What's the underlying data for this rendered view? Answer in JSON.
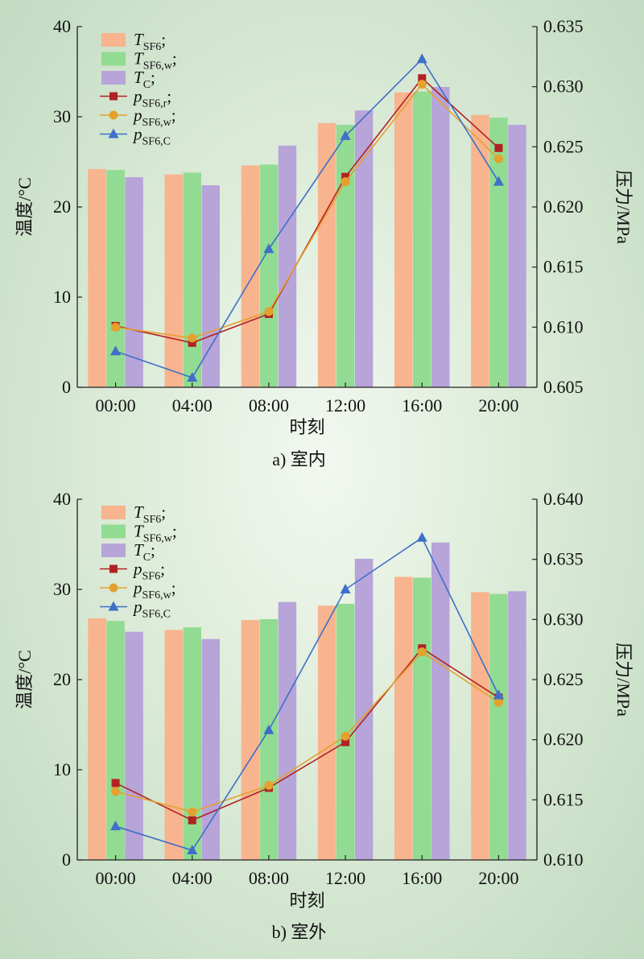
{
  "chart_data": [
    {
      "type": "bar",
      "caption": "a) 室内",
      "categories": [
        "00:00",
        "04:00",
        "08:00",
        "12:00",
        "16:00",
        "20:00"
      ],
      "xlabel": "时刻",
      "ylabel": "温度/°C",
      "ylim": [
        0,
        40
      ],
      "yticks": [
        "0",
        "10",
        "20",
        "30",
        "40"
      ],
      "y2label": "压力/MPa",
      "y2lim": [
        0.605,
        0.635
      ],
      "y2ticks": [
        "0.605",
        "0.610",
        "0.615",
        "0.620",
        "0.625",
        "0.630",
        "0.635"
      ],
      "grid": false,
      "legend_position": "top-left",
      "series": [
        {
          "name": "T_SF6",
          "label_main": "T",
          "label_sub": "SF6",
          "label_suffix": ";",
          "italic": true,
          "kind": "bar",
          "axis": "left",
          "color": "#f8b48e",
          "values": [
            24.2,
            23.6,
            24.6,
            29.3,
            32.7,
            30.2
          ]
        },
        {
          "name": "T_SF6,w",
          "label_main": "T",
          "label_sub": "SF6,w",
          "label_suffix": ";",
          "italic": true,
          "kind": "bar",
          "axis": "left",
          "color": "#92db92",
          "values": [
            24.1,
            23.8,
            24.7,
            29.1,
            32.8,
            29.9
          ]
        },
        {
          "name": "T_C",
          "label_main": "T",
          "label_sub": "C",
          "label_suffix": ";",
          "italic": true,
          "kind": "bar",
          "axis": "left",
          "color": "#b7a4d8",
          "values": [
            23.3,
            22.4,
            26.8,
            30.7,
            33.3,
            29.1
          ]
        },
        {
          "name": "p_SF6,r",
          "label_main": "p",
          "label_sub": "SF6,r",
          "label_suffix": ";",
          "italic": true,
          "kind": "line",
          "marker": "square",
          "axis": "right",
          "color": "#b22222",
          "values": [
            0.6101,
            0.6087,
            0.6111,
            0.6225,
            0.6307,
            0.6249
          ]
        },
        {
          "name": "p_SF6,w",
          "label_main": "p",
          "label_sub": "SF6,w",
          "label_suffix": ";",
          "italic": true,
          "kind": "line",
          "marker": "circle",
          "axis": "right",
          "color": "#e5a12e",
          "values": [
            0.61,
            0.6091,
            0.6113,
            0.6221,
            0.6302,
            0.624
          ]
        },
        {
          "name": "p_SF6,C",
          "label_main": "p",
          "label_sub": "SF6,C",
          "label_suffix": "",
          "italic": true,
          "kind": "line",
          "marker": "triangle",
          "axis": "right",
          "color": "#3f6fc8",
          "values": [
            0.608,
            0.6058,
            0.6165,
            0.6259,
            0.6323,
            0.6221
          ]
        }
      ]
    },
    {
      "type": "bar",
      "caption": "b) 室外",
      "categories": [
        "00:00",
        "04:00",
        "08:00",
        "12:00",
        "16:00",
        "20:00"
      ],
      "xlabel": "时刻",
      "ylabel": "温度/°C",
      "ylim": [
        0,
        40
      ],
      "yticks": [
        "0",
        "10",
        "20",
        "30",
        "40"
      ],
      "y2label": "压力/MPa",
      "y2lim": [
        0.61,
        0.64
      ],
      "y2ticks": [
        "0.610",
        "0.615",
        "0.620",
        "0.625",
        "0.630",
        "0.635",
        "0.640"
      ],
      "grid": false,
      "legend_position": "top-left",
      "series": [
        {
          "name": "T_SF6",
          "label_main": "T",
          "label_sub": "SF6",
          "label_suffix": ";",
          "italic": true,
          "kind": "bar",
          "axis": "left",
          "color": "#f8b48e",
          "values": [
            26.8,
            25.5,
            26.6,
            28.2,
            31.4,
            29.7
          ]
        },
        {
          "name": "T_SF6,w",
          "label_main": "T",
          "label_sub": "SF6,w",
          "label_suffix": ";",
          "italic": true,
          "kind": "bar",
          "axis": "left",
          "color": "#92db92",
          "values": [
            26.5,
            25.8,
            26.7,
            28.4,
            31.3,
            29.5
          ]
        },
        {
          "name": "T_C",
          "label_main": "T",
          "label_sub": "C",
          "label_suffix": ";",
          "italic": true,
          "kind": "bar",
          "axis": "left",
          "color": "#b7a4d8",
          "values": [
            25.3,
            24.5,
            28.6,
            33.4,
            35.2,
            29.8
          ]
        },
        {
          "name": "p_SF6",
          "label_main": "p",
          "label_sub": "SF6",
          "label_suffix": ";",
          "italic": true,
          "kind": "line",
          "marker": "square",
          "axis": "right",
          "color": "#b22222",
          "values": [
            0.6164,
            0.6133,
            0.616,
            0.6198,
            0.6276,
            0.6235
          ]
        },
        {
          "name": "p_SF6,w",
          "label_main": "p",
          "label_sub": "SF6,w",
          "label_suffix": ";",
          "italic": true,
          "kind": "line",
          "marker": "circle",
          "axis": "right",
          "color": "#e5a12e",
          "values": [
            0.6157,
            0.614,
            0.6162,
            0.6203,
            0.6273,
            0.6231
          ]
        },
        {
          "name": "p_SF6,C",
          "label_main": "p",
          "label_sub": "SF6,C",
          "label_suffix": "",
          "italic": true,
          "kind": "line",
          "marker": "triangle",
          "axis": "right",
          "color": "#3f6fc8",
          "values": [
            0.6128,
            0.6108,
            0.6208,
            0.6325,
            0.6368,
            0.6237
          ]
        }
      ]
    }
  ]
}
